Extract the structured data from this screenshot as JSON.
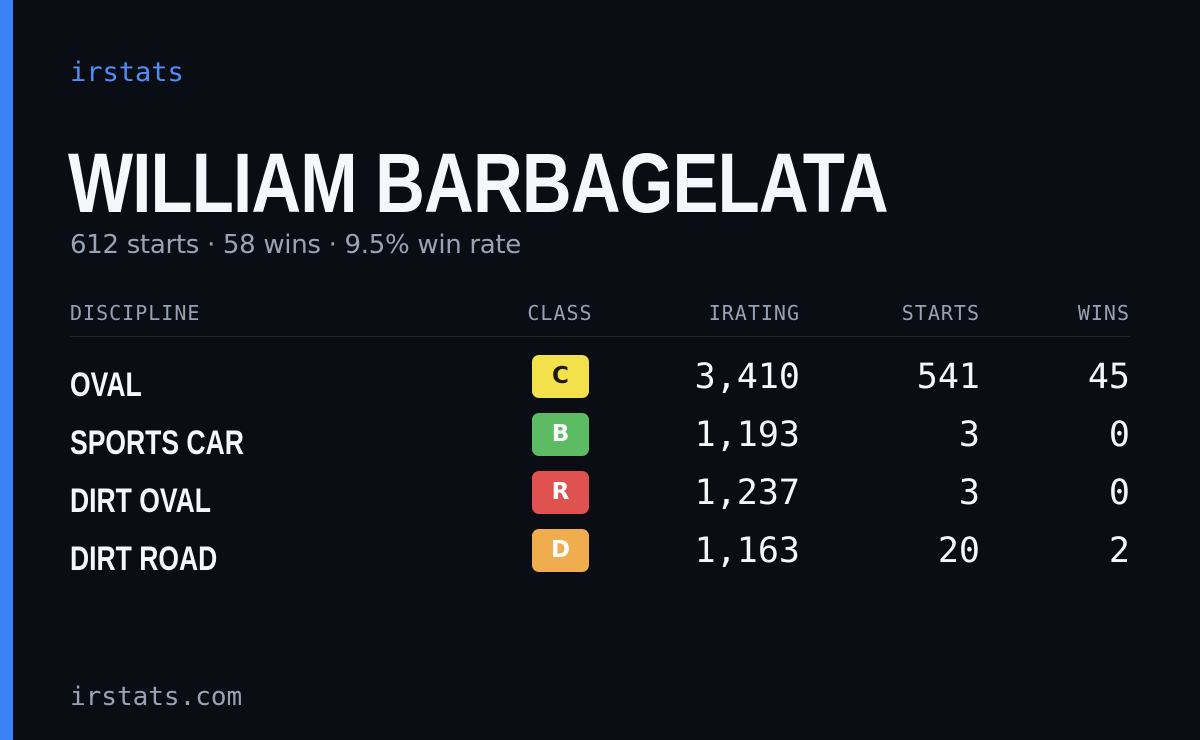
{
  "brand": "irstats",
  "driver": {
    "name": "WILLIAM BARBAGELATA",
    "summary": "612 starts · 58 wins · 9.5% win rate"
  },
  "table": {
    "headers": {
      "discipline": "DISCIPLINE",
      "class": "CLASS",
      "irating": "IRATING",
      "starts": "STARTS",
      "wins": "WINS"
    },
    "rows": [
      {
        "discipline": "OVAL",
        "class": "C",
        "irating": "3,410",
        "starts": "541",
        "wins": "45"
      },
      {
        "discipline": "SPORTS CAR",
        "class": "B",
        "irating": "1,193",
        "starts": "3",
        "wins": "0"
      },
      {
        "discipline": "DIRT OVAL",
        "class": "R",
        "irating": "1,237",
        "starts": "3",
        "wins": "0"
      },
      {
        "discipline": "DIRT ROAD",
        "class": "D",
        "irating": "1,163",
        "starts": "20",
        "wins": "2"
      }
    ]
  },
  "class_colors": {
    "C": {
      "bg": "#f2e14a",
      "fg": "#1a1a1a"
    },
    "B": {
      "bg": "#5dbb63",
      "fg": "#ffffff"
    },
    "R": {
      "bg": "#e0524f",
      "fg": "#ffffff"
    },
    "D": {
      "bg": "#f0ad4e",
      "fg": "#ffffff"
    }
  },
  "colors": {
    "accent": "#3b82f6",
    "background": "#0b0d14"
  },
  "footer": "irstats.com"
}
